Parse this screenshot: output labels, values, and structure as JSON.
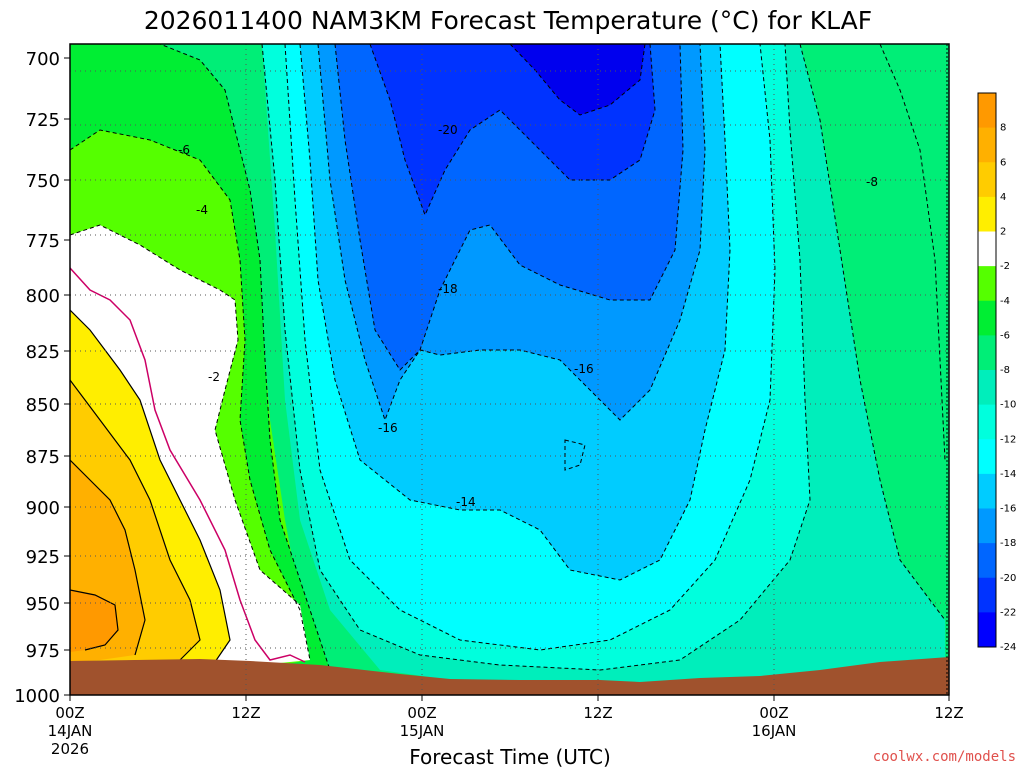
{
  "chart_data": {
    "type": "filled-contour",
    "title": "2026011400 NAM3KM Forecast Temperature (°C) for KLAF",
    "xlabel": "Forecast Time (UTC)",
    "ylabel": "",
    "credit": "coolwx.com/models",
    "units": "°C",
    "y_axis": {
      "quantity": "pressure (hPa)",
      "ylim": [
        1000,
        700
      ],
      "ticks": [
        "700",
        "725",
        "750",
        "775",
        "800",
        "825",
        "850",
        "875",
        "900",
        "925",
        "950",
        "975",
        "1000"
      ]
    },
    "x_axis": {
      "xlim_hours": [
        0,
        60
      ],
      "ticks": [
        {
          "hour": 0,
          "line1": "00Z",
          "line2": "14JAN",
          "line3": "2026"
        },
        {
          "hour": 12,
          "line1": "12Z",
          "line2": "",
          "line3": ""
        },
        {
          "hour": 24,
          "line1": "00Z",
          "line2": "15JAN",
          "line3": ""
        },
        {
          "hour": 36,
          "line1": "12Z",
          "line2": "",
          "line3": ""
        },
        {
          "hour": 48,
          "line1": "00Z",
          "line2": "16JAN",
          "line3": ""
        },
        {
          "hour": 60,
          "line1": "12Z",
          "line2": "",
          "line3": ""
        }
      ]
    },
    "grid": true,
    "colorbar": {
      "placement": "right",
      "labels": [
        "8",
        "6",
        "4",
        "2",
        "-2",
        "-4",
        "-6",
        "-8",
        "-10",
        "-12",
        "-14",
        "-16",
        "-18",
        "-20",
        "-22",
        "-24"
      ],
      "colors": [
        "#ff9900",
        "#ffb000",
        "#ffcc00",
        "#ffee00",
        "#ffffff",
        "#55ff00",
        "#00ee33",
        "#00ee77",
        "#00eebb",
        "#00ffdd",
        "#00ffff",
        "#00ccff",
        "#0099ff",
        "#0066ff",
        "#0033ff",
        "#0000ff"
      ]
    },
    "contour_labels": [
      "-20",
      "-18",
      "-16",
      "-16",
      "-14",
      "-8",
      "-6",
      "-4",
      "-2"
    ],
    "features": {
      "warm_nose_max_c": 8,
      "coldest_core_c": -22,
      "coldest_core_time": "15JAN 09Z",
      "coldest_core_pressure_hpa": 700,
      "terrain_color": "#a0522d",
      "zero_isotherm_color": "#cc0066"
    }
  }
}
